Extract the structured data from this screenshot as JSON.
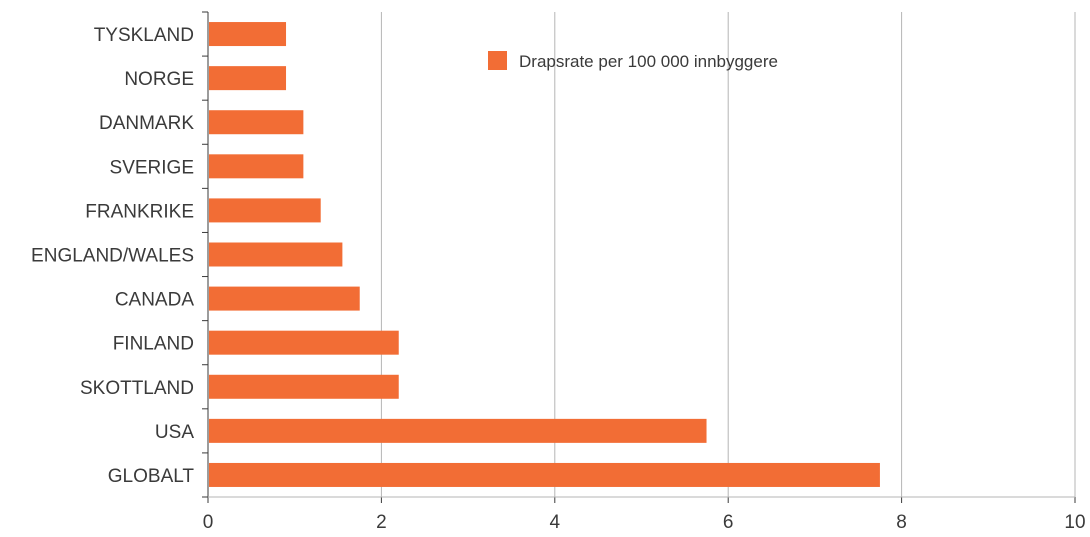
{
  "chart_data": {
    "type": "bar",
    "orientation": "horizontal",
    "title": "",
    "xlabel": "",
    "ylabel": "",
    "categories": [
      "TYSKLAND",
      "NORGE",
      "DANMARK",
      "SVERIGE",
      "FRANKRIKE",
      "ENGLAND/WALES",
      "CANADA",
      "FINLAND",
      "SKOTTLAND",
      "USA",
      "GLOBALT"
    ],
    "series": [
      {
        "name": "Drapsrate per 100 000 innbyggere",
        "color": "#f26d35",
        "values": [
          0.9,
          0.9,
          1.1,
          1.1,
          1.3,
          1.55,
          1.75,
          2.2,
          2.2,
          5.75,
          7.75
        ]
      }
    ],
    "xlim": [
      0,
      10
    ],
    "xticks": [
      "0",
      "2",
      "4",
      "6",
      "8",
      "10"
    ],
    "grid": "vertical",
    "grid_color": "#b5b5b5",
    "axis_color": "#3a3a3a",
    "legend_placement": "top-center"
  }
}
